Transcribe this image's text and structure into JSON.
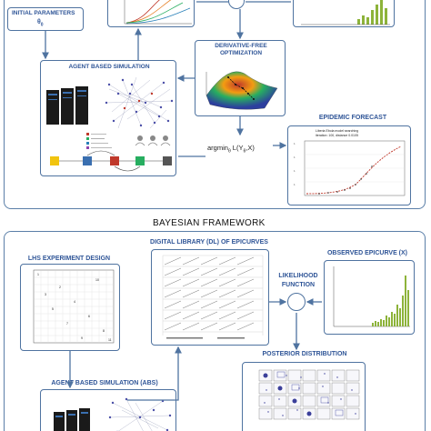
{
  "top": {
    "initial_parameters_label": "INITIAL PARAMETERS",
    "theta_label": "θ",
    "theta_sub": "0",
    "agent_based_simulation_title": "AGENT BASED SIMULATION",
    "derivative_free_optimization_title": "DERIVATIVE-FREE OPTIMIZATION",
    "argmin_label": "argmin",
    "argmin_sub": "θ",
    "argmin_rest": " L(Y",
    "argmin_rest_sub": "θ",
    "argmin_tail": ",X)",
    "epidemic_forecast_title": "EPIDEMIC FORECAST",
    "forecast_caption": "Liberia Ebola model searching",
    "forecast_caption2": "iteration: 100, distance 0.0105"
  },
  "section_title": "BAYESIAN FRAMEWORK",
  "bottom": {
    "lhs_title": "LHS EXPERIMENT DESIGN",
    "digital_library_title": "DIGITAL LIBRARY (DL) OF EPICURVES",
    "observed_epicurve_title": "OBSERVED EPICURVE (X)",
    "likelihood_label": "LIKELIHOOD",
    "function_label": "FUNCTION",
    "posterior_title": "POSTERIOR DISTRIBUTION",
    "abs_title": "AGENT BASED SIMULATION (ABS)"
  },
  "colors": {
    "accent": "#2f5597",
    "border": "#4f73a0",
    "green_bar": "#8db33a",
    "red_dash": "#c0392b"
  }
}
